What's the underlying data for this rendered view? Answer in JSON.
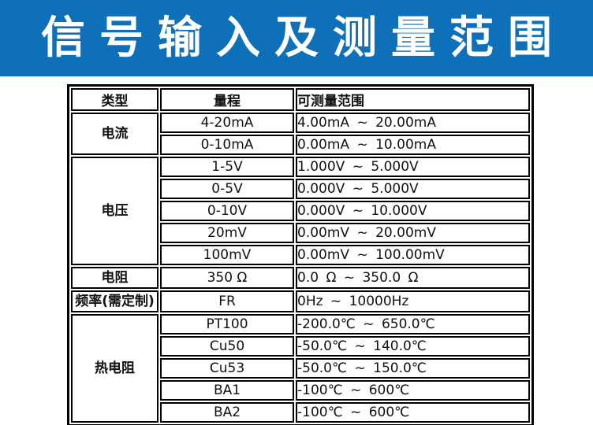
{
  "banner": {
    "title": "信号输入及测量范围",
    "background_color": "#0e70b8",
    "text_color": "#ffffff"
  },
  "table": {
    "headers": [
      "类型",
      "量程",
      "可测量范围"
    ],
    "rows": [
      {
        "type": "电流",
        "type_rowspan": 2,
        "range": "4-20mA",
        "measurable_range": "4.00mA ~ 20.00mA"
      },
      {
        "range": "0-10mA",
        "measurable_range": "0.00mA ~ 10.00mA"
      },
      {
        "type": "电压",
        "type_rowspan": 5,
        "range": "1-5V",
        "measurable_range": "1.000V ~ 5.000V"
      },
      {
        "range": "0-5V",
        "measurable_range": "0.000V ~ 5.000V"
      },
      {
        "range": "0-10V",
        "measurable_range": "0.000V ~ 10.000V"
      },
      {
        "range": "20mV",
        "measurable_range": "0.00mV ~ 20.00mV"
      },
      {
        "range": "100mV",
        "measurable_range": "0.00mV ~ 100.00mV"
      },
      {
        "type": "电阻",
        "type_rowspan": 1,
        "range": "350 Ω",
        "measurable_range": "0.0 Ω ~ 350.0 Ω"
      },
      {
        "type": "频率(需定制)",
        "type_rowspan": 1,
        "range": "FR",
        "measurable_range": "0Hz ~ 10000Hz"
      },
      {
        "type": "热电阻",
        "type_rowspan": 5,
        "range": "PT100",
        "measurable_range": "-200.0℃ ~ 650.0℃"
      },
      {
        "range": "Cu50",
        "measurable_range": "-50.0℃ ~ 140.0℃"
      },
      {
        "range": "Cu53",
        "measurable_range": "-50.0℃ ~ 150.0℃"
      },
      {
        "range": "BA1",
        "measurable_range": "-100℃ ~ 600℃"
      },
      {
        "range": "BA2",
        "measurable_range": "-100℃ ~ 600℃"
      }
    ]
  }
}
